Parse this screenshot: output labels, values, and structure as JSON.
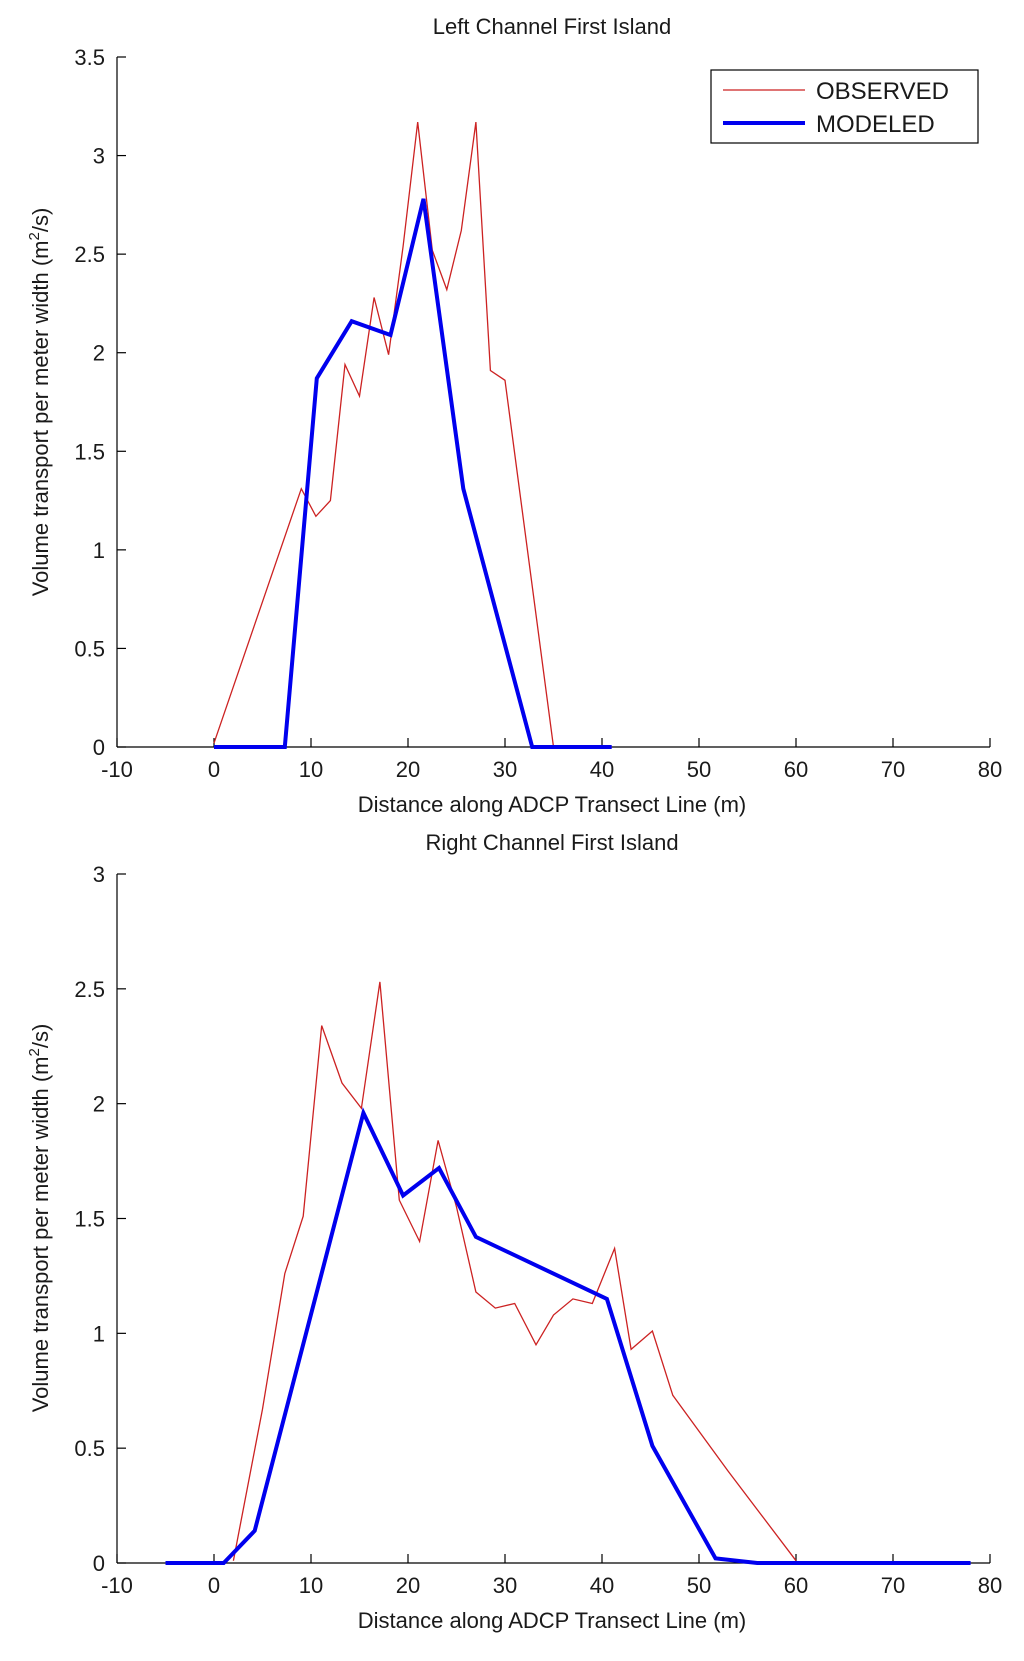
{
  "chart_data": [
    {
      "type": "line",
      "title": "Left Channel First Island",
      "xlabel": "Distance along ADCP Transect Line (m)",
      "ylabel_main": "Volume transport per meter width (m",
      "ylabel_sup": "2",
      "ylabel_tail": "/s)",
      "xlim": [
        -10,
        80
      ],
      "ylim": [
        0,
        3.5
      ],
      "xticks": [
        "-10",
        "0",
        "10",
        "20",
        "30",
        "40",
        "50",
        "60",
        "70",
        "80"
      ],
      "yticks": [
        "0",
        "0.5",
        "1",
        "1.5",
        "2",
        "2.5",
        "3",
        "3.5"
      ],
      "legend": {
        "position": "top-right",
        "entries": [
          "OBSERVED",
          "MODELED"
        ]
      },
      "series": [
        {
          "name": "OBSERVED",
          "color": "#cc2222",
          "x": [
            0,
            9,
            10.5,
            12,
            13.5,
            15,
            16.5,
            18,
            19.5,
            21,
            22.5,
            24,
            25.5,
            27,
            28.5,
            30,
            35,
            41
          ],
          "y": [
            0.02,
            1.31,
            1.17,
            1.25,
            1.94,
            1.78,
            2.28,
            1.99,
            2.54,
            3.17,
            2.52,
            2.32,
            2.62,
            3.17,
            1.91,
            1.86,
            0,
            0
          ]
        },
        {
          "name": "MODELED",
          "color": "#0000ee",
          "x": [
            0,
            7.3,
            10.6,
            14.2,
            18.2,
            21.6,
            25.7,
            32.8,
            41
          ],
          "y": [
            0,
            0,
            1.87,
            2.16,
            2.09,
            2.78,
            1.31,
            0,
            0
          ]
        }
      ]
    },
    {
      "type": "line",
      "title": "Right Channel First Island",
      "xlabel": "Distance along ADCP Transect Line (m)",
      "ylabel_main": "Volume transport per meter width (m",
      "ylabel_sup": "2",
      "ylabel_tail": "/s)",
      "xlim": [
        -10,
        80
      ],
      "ylim": [
        0,
        3
      ],
      "xticks": [
        "-10",
        "0",
        "10",
        "20",
        "30",
        "40",
        "50",
        "60",
        "70",
        "80"
      ],
      "yticks": [
        "0",
        "0.5",
        "1",
        "1.5",
        "2",
        "2.5",
        "3"
      ],
      "series": [
        {
          "name": "OBSERVED",
          "color": "#cc2222",
          "x": [
            2,
            5,
            7.3,
            9.2,
            11.1,
            13.2,
            15.2,
            17.1,
            19.1,
            21.2,
            23.1,
            25,
            27,
            29,
            31,
            33.2,
            35,
            37,
            39,
            41.3,
            43,
            45.2,
            47.3,
            53,
            60
          ],
          "y": [
            0.01,
            0.67,
            1.26,
            1.51,
            2.34,
            2.09,
            1.98,
            2.53,
            1.58,
            1.4,
            1.84,
            1.55,
            1.18,
            1.11,
            1.13,
            0.95,
            1.08,
            1.15,
            1.13,
            1.37,
            0.93,
            1.01,
            0.73,
            0.4,
            0.01
          ]
        },
        {
          "name": "MODELED",
          "color": "#0000ee",
          "x": [
            -5,
            1,
            4.2,
            15.4,
            19.5,
            23.2,
            27,
            40.5,
            45.2,
            51.7,
            56,
            78
          ],
          "y": [
            0,
            0,
            0.14,
            1.96,
            1.6,
            1.72,
            1.42,
            1.15,
            0.51,
            0.02,
            0,
            0
          ]
        }
      ]
    }
  ]
}
